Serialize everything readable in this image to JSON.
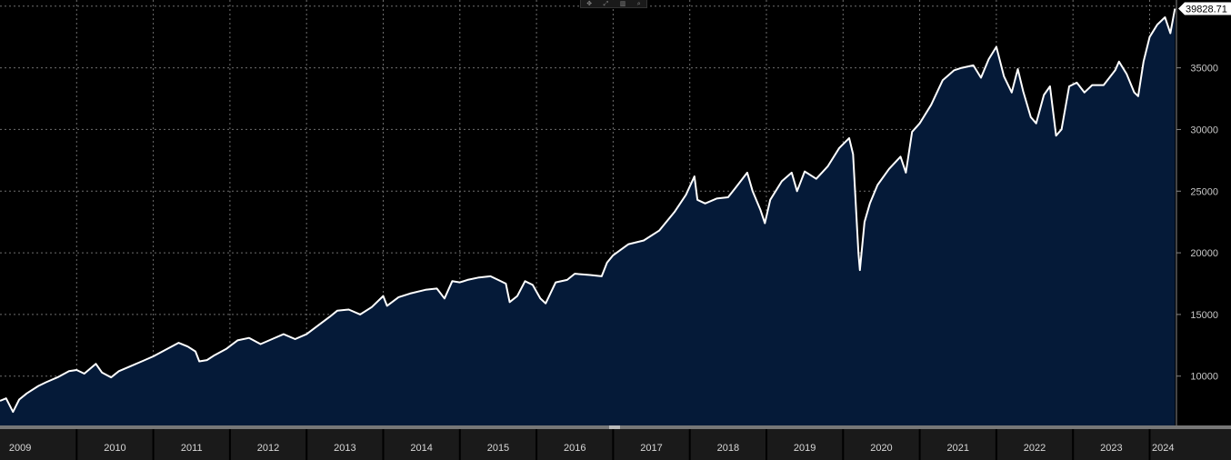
{
  "toolbar": {
    "icons": [
      "move-icon",
      "zoom-icon",
      "bar-icon",
      "search-icon"
    ]
  },
  "chart_data": {
    "type": "area",
    "x_unit": "year",
    "ylim": [
      6000,
      40500
    ],
    "xlim": [
      2009.0,
      2024.35
    ],
    "y_ticks": [
      10000,
      15000,
      20000,
      25000,
      30000,
      35000
    ],
    "x_tick_labels": [
      "2009",
      "2010",
      "2011",
      "2012",
      "2013",
      "2014",
      "2015",
      "2016",
      "2017",
      "2018",
      "2019",
      "2020",
      "2021",
      "2022",
      "2023",
      "2024"
    ],
    "last_value_label": "39828.71",
    "grid": true,
    "colors": {
      "background": "#000000",
      "fill": "#051a38",
      "line": "#ffffff",
      "grid": "#6e6e6e",
      "axis_bar": "#1a1a1a"
    },
    "points": [
      [
        2009.0,
        8000
      ],
      [
        2009.08,
        8200
      ],
      [
        2009.17,
        7100
      ],
      [
        2009.25,
        8100
      ],
      [
        2009.35,
        8600
      ],
      [
        2009.5,
        9200
      ],
      [
        2009.6,
        9500
      ],
      [
        2009.75,
        9900
      ],
      [
        2009.9,
        10400
      ],
      [
        2010.0,
        10500
      ],
      [
        2010.1,
        10200
      ],
      [
        2010.25,
        11000
      ],
      [
        2010.33,
        10300
      ],
      [
        2010.45,
        9900
      ],
      [
        2010.55,
        10400
      ],
      [
        2010.7,
        10800
      ],
      [
        2010.85,
        11200
      ],
      [
        2011.0,
        11600
      ],
      [
        2011.15,
        12100
      ],
      [
        2011.33,
        12700
      ],
      [
        2011.45,
        12400
      ],
      [
        2011.55,
        12000
      ],
      [
        2011.6,
        11200
      ],
      [
        2011.7,
        11300
      ],
      [
        2011.8,
        11700
      ],
      [
        2011.95,
        12200
      ],
      [
        2012.1,
        12900
      ],
      [
        2012.25,
        13100
      ],
      [
        2012.4,
        12600
      ],
      [
        2012.55,
        13000
      ],
      [
        2012.7,
        13400
      ],
      [
        2012.85,
        13000
      ],
      [
        2013.0,
        13400
      ],
      [
        2013.15,
        14100
      ],
      [
        2013.3,
        14800
      ],
      [
        2013.4,
        15300
      ],
      [
        2013.55,
        15400
      ],
      [
        2013.7,
        15000
      ],
      [
        2013.85,
        15600
      ],
      [
        2014.0,
        16500
      ],
      [
        2014.05,
        15700
      ],
      [
        2014.2,
        16400
      ],
      [
        2014.35,
        16700
      ],
      [
        2014.55,
        17000
      ],
      [
        2014.7,
        17100
      ],
      [
        2014.8,
        16300
      ],
      [
        2014.9,
        17700
      ],
      [
        2015.0,
        17600
      ],
      [
        2015.1,
        17800
      ],
      [
        2015.25,
        18000
      ],
      [
        2015.4,
        18100
      ],
      [
        2015.5,
        17800
      ],
      [
        2015.6,
        17500
      ],
      [
        2015.65,
        16000
      ],
      [
        2015.75,
        16500
      ],
      [
        2015.85,
        17700
      ],
      [
        2015.95,
        17400
      ],
      [
        2016.05,
        16300
      ],
      [
        2016.12,
        15900
      ],
      [
        2016.25,
        17600
      ],
      [
        2016.4,
        17800
      ],
      [
        2016.5,
        18300
      ],
      [
        2016.7,
        18200
      ],
      [
        2016.85,
        18100
      ],
      [
        2016.92,
        19200
      ],
      [
        2017.0,
        19800
      ],
      [
        2017.2,
        20700
      ],
      [
        2017.4,
        21000
      ],
      [
        2017.6,
        21800
      ],
      [
        2017.8,
        23300
      ],
      [
        2017.95,
        24700
      ],
      [
        2018.06,
        26200
      ],
      [
        2018.1,
        24300
      ],
      [
        2018.2,
        24000
      ],
      [
        2018.35,
        24400
      ],
      [
        2018.5,
        24500
      ],
      [
        2018.6,
        25300
      ],
      [
        2018.75,
        26500
      ],
      [
        2018.82,
        25000
      ],
      [
        2018.92,
        23500
      ],
      [
        2018.98,
        22400
      ],
      [
        2019.05,
        24300
      ],
      [
        2019.2,
        25800
      ],
      [
        2019.33,
        26500
      ],
      [
        2019.4,
        25000
      ],
      [
        2019.5,
        26600
      ],
      [
        2019.65,
        26000
      ],
      [
        2019.8,
        27000
      ],
      [
        2019.95,
        28500
      ],
      [
        2020.08,
        29300
      ],
      [
        2020.13,
        28000
      ],
      [
        2020.2,
        20000
      ],
      [
        2020.22,
        18600
      ],
      [
        2020.28,
        22500
      ],
      [
        2020.35,
        24000
      ],
      [
        2020.45,
        25500
      ],
      [
        2020.6,
        26800
      ],
      [
        2020.75,
        27800
      ],
      [
        2020.82,
        26500
      ],
      [
        2020.9,
        29800
      ],
      [
        2021.0,
        30500
      ],
      [
        2021.15,
        32000
      ],
      [
        2021.3,
        34000
      ],
      [
        2021.45,
        34800
      ],
      [
        2021.55,
        35000
      ],
      [
        2021.7,
        35200
      ],
      [
        2021.8,
        34200
      ],
      [
        2021.9,
        35700
      ],
      [
        2022.0,
        36700
      ],
      [
        2022.1,
        34300
      ],
      [
        2022.2,
        33000
      ],
      [
        2022.28,
        34900
      ],
      [
        2022.35,
        33100
      ],
      [
        2022.45,
        31000
      ],
      [
        2022.52,
        30500
      ],
      [
        2022.62,
        32800
      ],
      [
        2022.7,
        33500
      ],
      [
        2022.78,
        29500
      ],
      [
        2022.85,
        30000
      ],
      [
        2022.95,
        33500
      ],
      [
        2023.05,
        33800
      ],
      [
        2023.15,
        33000
      ],
      [
        2023.25,
        33600
      ],
      [
        2023.4,
        33600
      ],
      [
        2023.55,
        34800
      ],
      [
        2023.6,
        35500
      ],
      [
        2023.7,
        34500
      ],
      [
        2023.8,
        33000
      ],
      [
        2023.85,
        32700
      ],
      [
        2023.92,
        35500
      ],
      [
        2024.0,
        37500
      ],
      [
        2024.1,
        38500
      ],
      [
        2024.2,
        39100
      ],
      [
        2024.27,
        37800
      ],
      [
        2024.33,
        39800
      ]
    ]
  }
}
